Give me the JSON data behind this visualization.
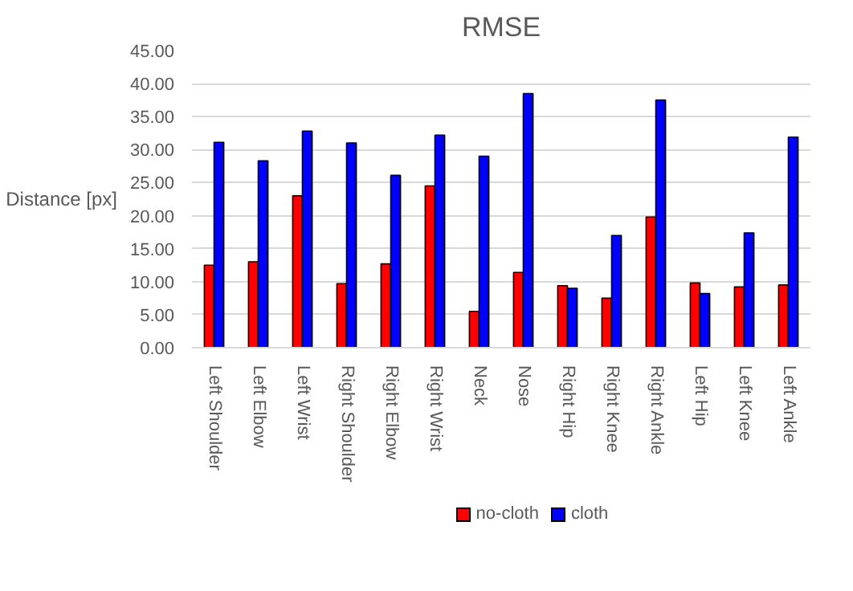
{
  "chart_data": {
    "type": "bar",
    "title": "RMSE",
    "ylabel": "Distance [px]",
    "categories": [
      "Left Shoulder",
      "Left Elbow",
      "Left Wrist",
      "Right Shoulder",
      "Right Elbow",
      "Right Wrist",
      "Neck",
      "Nose",
      "Right Hip",
      "Right Knee",
      "Right Ankle",
      "Left Hip",
      "Left Knee",
      "Left Ankle"
    ],
    "series": [
      {
        "name": "no-cloth",
        "color": "#ff0000",
        "values": [
          12.5,
          13.0,
          23.0,
          9.7,
          12.7,
          24.5,
          5.5,
          11.4,
          9.4,
          7.5,
          19.8,
          9.8,
          9.2,
          9.5
        ]
      },
      {
        "name": "cloth",
        "color": "#0000ff",
        "values": [
          31.1,
          28.3,
          32.8,
          31.0,
          26.1,
          32.2,
          29.0,
          38.5,
          9.0,
          17.0,
          37.5,
          8.2,
          17.4,
          31.9
        ]
      }
    ],
    "ylim": [
      0,
      45
    ],
    "yticks": [
      {
        "value": 0,
        "label": "0.00"
      },
      {
        "value": 5,
        "label": "5.00"
      },
      {
        "value": 10,
        "label": "10.00"
      },
      {
        "value": 15,
        "label": "15.00"
      },
      {
        "value": 20,
        "label": "20.00"
      },
      {
        "value": 25,
        "label": "25.00"
      },
      {
        "value": 30,
        "label": "30.00"
      },
      {
        "value": 35,
        "label": "35.00"
      },
      {
        "value": 40,
        "label": "40.00"
      },
      {
        "value": 45,
        "label": "45.00"
      }
    ],
    "grid": "y",
    "legend": "bottom"
  }
}
